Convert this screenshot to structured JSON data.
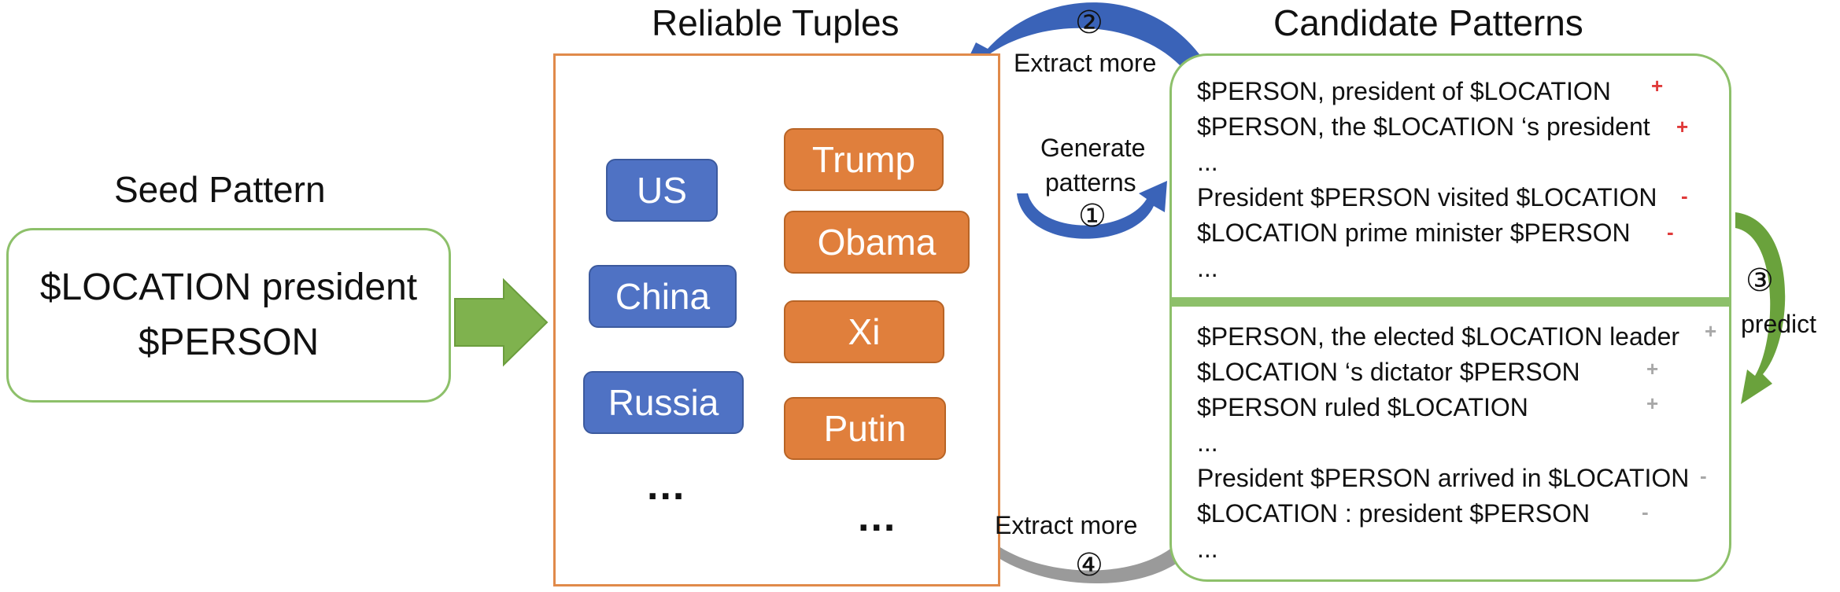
{
  "seed": {
    "title": "Seed Pattern",
    "line1": "$LOCATION president",
    "line2": "$PERSON"
  },
  "tuples": {
    "title": "Reliable Tuples",
    "locations": [
      "US",
      "China",
      "Russia"
    ],
    "persons": [
      "Trump",
      "Obama",
      "Xi",
      "Putin"
    ],
    "ellipsis": "..."
  },
  "candidates": {
    "title": "Candidate Patterns",
    "top": [
      {
        "text": "$PERSON, president of $LOCATION",
        "mark": "+"
      },
      {
        "text": "$PERSON, the $LOCATION ‘s president",
        "mark": "+"
      },
      {
        "text": "...",
        "mark": ""
      },
      {
        "text": "President $PERSON visited $LOCATION",
        "mark": "-"
      },
      {
        "text": "$LOCATION prime minister $PERSON",
        "mark": "-"
      },
      {
        "text": "...",
        "mark": ""
      }
    ],
    "bottom": [
      {
        "text": "$PERSON, the elected $LOCATION leader",
        "mark": "+"
      },
      {
        "text": "$LOCATION ‘s dictator $PERSON",
        "mark": "+"
      },
      {
        "text": "$PERSON ruled $LOCATION",
        "mark": "+"
      },
      {
        "text": "...",
        "mark": ""
      },
      {
        "text": "President $PERSON arrived in $LOCATION",
        "mark": "-"
      },
      {
        "text": "$LOCATION : president $PERSON",
        "mark": "-"
      },
      {
        "text": "...",
        "mark": ""
      }
    ]
  },
  "steps": {
    "step1_num": "①",
    "step1_line1": "Generate",
    "step1_line2": "patterns",
    "step2_num": "②",
    "step2_label": "Extract more",
    "step3_num": "③",
    "step3_label": "predict",
    "step4_num": "④",
    "step4_label": "Extract more"
  },
  "colors": {
    "location_fill": "#4f72c4",
    "person_fill": "#e07f3c",
    "green": "#8dc06a",
    "blue_arrow": "#3a63b8",
    "gray_arrow": "#9a9a9a",
    "plus_red": "#e03a3a"
  }
}
